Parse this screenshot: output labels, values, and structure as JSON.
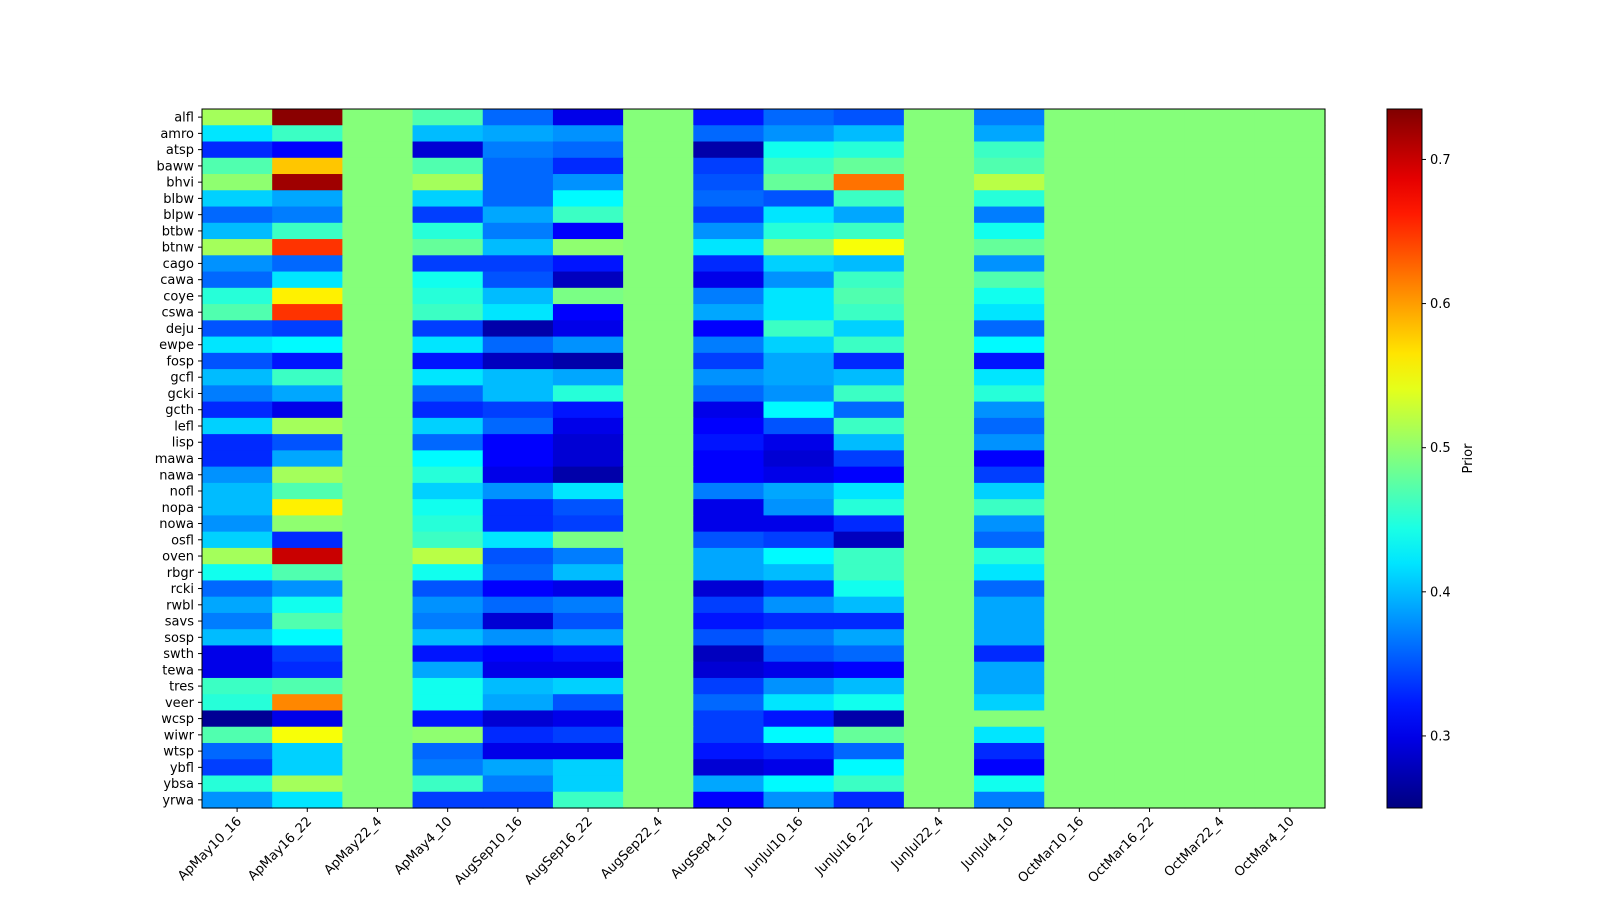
{
  "chart_data": {
    "type": "heatmap",
    "title": "",
    "xlabel": "",
    "ylabel": "",
    "colormap": "jet",
    "colorbar": {
      "label": "Prior",
      "range": [
        0.25,
        0.735
      ],
      "ticks": [
        0.3,
        0.4,
        0.5,
        0.6,
        0.7
      ],
      "tick_labels": [
        "0.3",
        "0.4",
        "0.5",
        "0.6",
        "0.7"
      ]
    },
    "x_categories": [
      "ApMay10_16",
      "ApMay16_22",
      "ApMay22_4",
      "ApMay4_10",
      "AugSep10_16",
      "AugSep16_22",
      "AugSep22_4",
      "AugSep4_10",
      "JunJul10_16",
      "JunJul16_22",
      "JunJul22_4",
      "JunJul4_10",
      "OctMar10_16",
      "OctMar16_22",
      "OctMar22_4",
      "OctMar4_10"
    ],
    "y_categories": [
      "alfl",
      "amro",
      "atsp",
      "baww",
      "bhvi",
      "blbw",
      "blpw",
      "btbw",
      "btnw",
      "cago",
      "cawa",
      "coye",
      "cswa",
      "deju",
      "ewpe",
      "fosp",
      "gcfl",
      "gcki",
      "gcth",
      "lefl",
      "lisp",
      "mawa",
      "nawa",
      "nofl",
      "nopa",
      "nowa",
      "osfl",
      "oven",
      "rbgr",
      "rcki",
      "rwbl",
      "savs",
      "sosp",
      "swth",
      "tewa",
      "tres",
      "veer",
      "wcsp",
      "wiwr",
      "wtsp",
      "ybfl",
      "ybsa",
      "yrwa"
    ],
    "values": [
      [
        0.51,
        0.73,
        0.495,
        0.47,
        0.36,
        0.3,
        0.495,
        0.32,
        0.36,
        0.35,
        0.495,
        0.37,
        0.495,
        0.495,
        0.495,
        0.495
      ],
      [
        0.42,
        0.46,
        0.495,
        0.4,
        0.39,
        0.38,
        0.495,
        0.36,
        0.38,
        0.4,
        0.495,
        0.39,
        0.495,
        0.495,
        0.495,
        0.495
      ],
      [
        0.33,
        0.31,
        0.495,
        0.29,
        0.37,
        0.36,
        0.495,
        0.27,
        0.44,
        0.45,
        0.495,
        0.46,
        0.495,
        0.495,
        0.495,
        0.495
      ],
      [
        0.47,
        0.58,
        0.495,
        0.47,
        0.36,
        0.33,
        0.495,
        0.34,
        0.46,
        0.48,
        0.495,
        0.47,
        0.495,
        0.495,
        0.495,
        0.495
      ],
      [
        0.5,
        0.72,
        0.495,
        0.51,
        0.36,
        0.38,
        0.495,
        0.35,
        0.48,
        0.62,
        0.495,
        0.52,
        0.495,
        0.495,
        0.495,
        0.495
      ],
      [
        0.41,
        0.39,
        0.495,
        0.41,
        0.36,
        0.43,
        0.495,
        0.36,
        0.35,
        0.46,
        0.495,
        0.45,
        0.495,
        0.495,
        0.495,
        0.495
      ],
      [
        0.36,
        0.37,
        0.495,
        0.34,
        0.39,
        0.46,
        0.495,
        0.34,
        0.42,
        0.39,
        0.495,
        0.37,
        0.495,
        0.495,
        0.495,
        0.495
      ],
      [
        0.4,
        0.46,
        0.495,
        0.45,
        0.37,
        0.31,
        0.495,
        0.38,
        0.45,
        0.46,
        0.495,
        0.44,
        0.495,
        0.495,
        0.495,
        0.495
      ],
      [
        0.51,
        0.65,
        0.495,
        0.48,
        0.4,
        0.5,
        0.495,
        0.42,
        0.5,
        0.55,
        0.495,
        0.48,
        0.495,
        0.495,
        0.495,
        0.495
      ],
      [
        0.38,
        0.36,
        0.495,
        0.34,
        0.34,
        0.32,
        0.495,
        0.33,
        0.41,
        0.4,
        0.495,
        0.38,
        0.495,
        0.495,
        0.495,
        0.495
      ],
      [
        0.36,
        0.42,
        0.495,
        0.44,
        0.35,
        0.28,
        0.495,
        0.3,
        0.38,
        0.46,
        0.495,
        0.47,
        0.495,
        0.495,
        0.495,
        0.495
      ],
      [
        0.45,
        0.56,
        0.495,
        0.45,
        0.4,
        0.49,
        0.495,
        0.37,
        0.42,
        0.47,
        0.495,
        0.44,
        0.495,
        0.495,
        0.495,
        0.495
      ],
      [
        0.47,
        0.65,
        0.495,
        0.46,
        0.42,
        0.31,
        0.495,
        0.39,
        0.42,
        0.46,
        0.495,
        0.42,
        0.495,
        0.495,
        0.495,
        0.495
      ],
      [
        0.35,
        0.34,
        0.495,
        0.34,
        0.27,
        0.3,
        0.495,
        0.31,
        0.46,
        0.41,
        0.495,
        0.36,
        0.495,
        0.495,
        0.495,
        0.495
      ],
      [
        0.42,
        0.43,
        0.495,
        0.42,
        0.36,
        0.38,
        0.495,
        0.37,
        0.41,
        0.46,
        0.495,
        0.43,
        0.495,
        0.495,
        0.495,
        0.495
      ],
      [
        0.35,
        0.32,
        0.495,
        0.32,
        0.28,
        0.27,
        0.495,
        0.34,
        0.39,
        0.33,
        0.495,
        0.32,
        0.495,
        0.495,
        0.495,
        0.495
      ],
      [
        0.4,
        0.46,
        0.495,
        0.42,
        0.4,
        0.39,
        0.495,
        0.38,
        0.39,
        0.4,
        0.495,
        0.42,
        0.495,
        0.495,
        0.495,
        0.495
      ],
      [
        0.37,
        0.39,
        0.495,
        0.36,
        0.4,
        0.45,
        0.495,
        0.36,
        0.38,
        0.46,
        0.495,
        0.45,
        0.495,
        0.495,
        0.495,
        0.495
      ],
      [
        0.33,
        0.3,
        0.495,
        0.33,
        0.34,
        0.32,
        0.495,
        0.3,
        0.43,
        0.36,
        0.495,
        0.38,
        0.495,
        0.495,
        0.495,
        0.495
      ],
      [
        0.41,
        0.51,
        0.495,
        0.41,
        0.36,
        0.3,
        0.495,
        0.31,
        0.35,
        0.46,
        0.495,
        0.36,
        0.495,
        0.495,
        0.495,
        0.495
      ],
      [
        0.33,
        0.35,
        0.495,
        0.36,
        0.31,
        0.29,
        0.495,
        0.32,
        0.3,
        0.4,
        0.495,
        0.38,
        0.495,
        0.495,
        0.495,
        0.495
      ],
      [
        0.33,
        0.39,
        0.495,
        0.43,
        0.31,
        0.29,
        0.495,
        0.31,
        0.29,
        0.34,
        0.495,
        0.31,
        0.495,
        0.495,
        0.495,
        0.495
      ],
      [
        0.38,
        0.51,
        0.495,
        0.45,
        0.3,
        0.27,
        0.495,
        0.31,
        0.3,
        0.31,
        0.495,
        0.34,
        0.495,
        0.495,
        0.495,
        0.495
      ],
      [
        0.4,
        0.47,
        0.495,
        0.41,
        0.38,
        0.42,
        0.495,
        0.37,
        0.39,
        0.42,
        0.495,
        0.41,
        0.495,
        0.495,
        0.495,
        0.495
      ],
      [
        0.4,
        0.56,
        0.495,
        0.44,
        0.33,
        0.35,
        0.495,
        0.3,
        0.38,
        0.45,
        0.495,
        0.46,
        0.495,
        0.495,
        0.495,
        0.495
      ],
      [
        0.38,
        0.5,
        0.495,
        0.45,
        0.33,
        0.34,
        0.495,
        0.3,
        0.3,
        0.33,
        0.495,
        0.38,
        0.495,
        0.495,
        0.495,
        0.495
      ],
      [
        0.41,
        0.33,
        0.495,
        0.46,
        0.42,
        0.49,
        0.495,
        0.35,
        0.34,
        0.28,
        0.495,
        0.36,
        0.495,
        0.495,
        0.495,
        0.495
      ],
      [
        0.51,
        0.7,
        0.495,
        0.52,
        0.35,
        0.37,
        0.495,
        0.39,
        0.43,
        0.46,
        0.495,
        0.45,
        0.495,
        0.495,
        0.495,
        0.495
      ],
      [
        0.44,
        0.47,
        0.495,
        0.44,
        0.36,
        0.4,
        0.495,
        0.39,
        0.4,
        0.46,
        0.495,
        0.42,
        0.495,
        0.495,
        0.495,
        0.495
      ],
      [
        0.36,
        0.38,
        0.495,
        0.35,
        0.31,
        0.3,
        0.495,
        0.29,
        0.33,
        0.44,
        0.495,
        0.36,
        0.495,
        0.495,
        0.495,
        0.495
      ],
      [
        0.39,
        0.44,
        0.495,
        0.38,
        0.36,
        0.37,
        0.495,
        0.34,
        0.38,
        0.4,
        0.495,
        0.39,
        0.495,
        0.495,
        0.495,
        0.495
      ],
      [
        0.37,
        0.47,
        0.495,
        0.37,
        0.29,
        0.35,
        0.495,
        0.32,
        0.33,
        0.33,
        0.495,
        0.39,
        0.495,
        0.495,
        0.495,
        0.495
      ],
      [
        0.4,
        0.43,
        0.495,
        0.4,
        0.38,
        0.39,
        0.495,
        0.35,
        0.37,
        0.39,
        0.495,
        0.39,
        0.495,
        0.495,
        0.495,
        0.495
      ],
      [
        0.3,
        0.34,
        0.495,
        0.32,
        0.31,
        0.32,
        0.495,
        0.28,
        0.35,
        0.36,
        0.495,
        0.33,
        0.495,
        0.495,
        0.495,
        0.495
      ],
      [
        0.3,
        0.33,
        0.495,
        0.39,
        0.3,
        0.3,
        0.495,
        0.29,
        0.3,
        0.31,
        0.495,
        0.39,
        0.495,
        0.495,
        0.495,
        0.495
      ],
      [
        0.46,
        0.47,
        0.495,
        0.44,
        0.4,
        0.41,
        0.495,
        0.34,
        0.38,
        0.4,
        0.495,
        0.39,
        0.495,
        0.495,
        0.495,
        0.495
      ],
      [
        0.45,
        0.61,
        0.495,
        0.44,
        0.39,
        0.35,
        0.495,
        0.36,
        0.42,
        0.44,
        0.495,
        0.41,
        0.495,
        0.495,
        0.495,
        0.495
      ],
      [
        0.26,
        0.3,
        0.495,
        0.32,
        0.29,
        0.3,
        0.495,
        0.34,
        0.32,
        0.27,
        0.495,
        0.495,
        0.495,
        0.495,
        0.495,
        0.495
      ],
      [
        0.47,
        0.55,
        0.495,
        0.5,
        0.33,
        0.34,
        0.495,
        0.34,
        0.43,
        0.48,
        0.495,
        0.42,
        0.495,
        0.495,
        0.495,
        0.495
      ],
      [
        0.36,
        0.41,
        0.495,
        0.36,
        0.3,
        0.3,
        0.495,
        0.32,
        0.33,
        0.36,
        0.495,
        0.33,
        0.495,
        0.495,
        0.495,
        0.495
      ],
      [
        0.34,
        0.41,
        0.495,
        0.37,
        0.39,
        0.41,
        0.495,
        0.29,
        0.3,
        0.43,
        0.495,
        0.31,
        0.495,
        0.495,
        0.495,
        0.495
      ],
      [
        0.45,
        0.51,
        0.495,
        0.46,
        0.37,
        0.41,
        0.495,
        0.39,
        0.43,
        0.46,
        0.495,
        0.44,
        0.495,
        0.495,
        0.495,
        0.495
      ],
      [
        0.38,
        0.42,
        0.495,
        0.34,
        0.34,
        0.46,
        0.495,
        0.31,
        0.38,
        0.33,
        0.495,
        0.37,
        0.495,
        0.495,
        0.495,
        0.495
      ]
    ]
  }
}
